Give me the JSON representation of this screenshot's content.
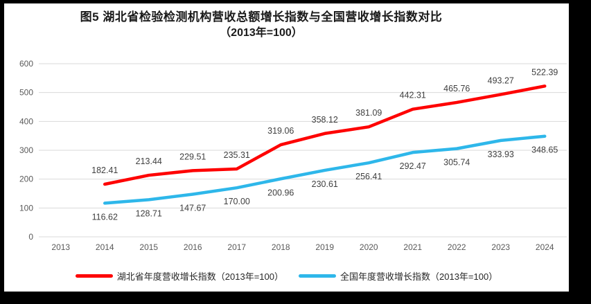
{
  "title": {
    "line1": "图5 湖北省检验检测机构营收总额增长指数与全国营收增长指数对比",
    "line2": "（2013年=100）"
  },
  "chart_data": {
    "type": "line",
    "categories": [
      "2013",
      "2014",
      "2015",
      "2016",
      "2017",
      "2018",
      "2019",
      "2020",
      "2021",
      "2022",
      "2023",
      "2024"
    ],
    "series": [
      {
        "name": "湖北省年度营收增长指数（2013年=100）",
        "color": "#FE0000",
        "label_position": "above",
        "values": [
          null,
          182.41,
          213.44,
          229.51,
          235.31,
          319.06,
          358.12,
          381.09,
          442.31,
          465.76,
          493.27,
          522.39
        ]
      },
      {
        "name": "全国年度营收增长指数（2013年=100）",
        "color": "#2EB7EA",
        "label_position": "below",
        "values": [
          null,
          116.62,
          128.71,
          147.67,
          170.0,
          200.96,
          230.61,
          256.41,
          292.47,
          305.74,
          333.93,
          348.65
        ]
      }
    ],
    "ylim": [
      0,
      600
    ],
    "yticks": [
      0,
      100,
      200,
      300,
      400,
      500,
      600
    ],
    "grid": "horizontal",
    "legend_position": "bottom",
    "colors": {
      "gridline": "#D9D9D9",
      "axis_text": "#595959",
      "data_label": "#3F3F3F",
      "frame": "#000000",
      "panel": "#FFFFFF"
    }
  }
}
